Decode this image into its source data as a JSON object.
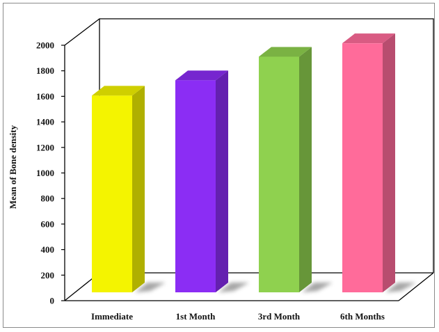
{
  "chart_data": {
    "type": "bar",
    "style": "3d",
    "categories": [
      "Immediate",
      "1st Month",
      "3rd Month",
      "6th Months"
    ],
    "values": [
      1540,
      1660,
      1845,
      1950
    ],
    "bar_colors": [
      "#f4f400",
      "#8b2df4",
      "#8fd14f",
      "#ff6b9a"
    ],
    "title": "",
    "xlabel": "",
    "ylabel": "Mean of Bone density",
    "ylim": [
      0,
      2000
    ],
    "yticks": [
      0,
      200,
      400,
      600,
      800,
      1000,
      1200,
      1400,
      1600,
      1800,
      2000
    ],
    "grid": false,
    "legend": "none"
  }
}
